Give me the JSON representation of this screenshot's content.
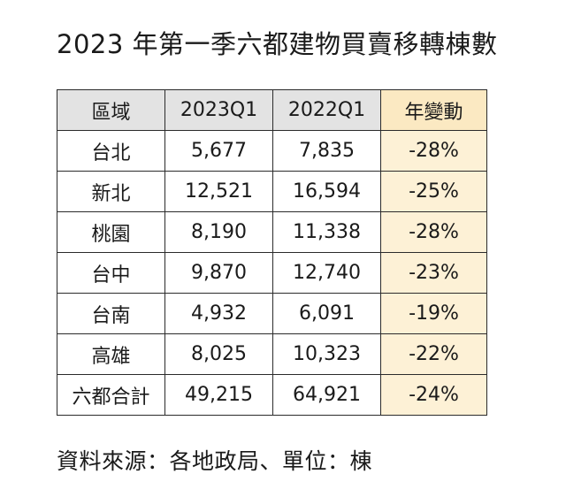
{
  "title": "2023 年第一季六都建物買賣移轉棟數",
  "table": {
    "headers": [
      "區域",
      "2023Q1",
      "2022Q1",
      "年變動"
    ],
    "rows": [
      [
        "台北",
        "5,677",
        "7,835",
        "-28%"
      ],
      [
        "新北",
        "12,521",
        "16,594",
        "-25%"
      ],
      [
        "桃園",
        "8,190",
        "11,338",
        "-28%"
      ],
      [
        "台中",
        "9,870",
        "12,740",
        "-23%"
      ],
      [
        "台南",
        "4,932",
        "6,091",
        "-19%"
      ],
      [
        "高雄",
        "8,025",
        "10,323",
        "-22%"
      ],
      [
        "六都合計",
        "49,215",
        "64,921",
        "-24%"
      ]
    ]
  },
  "source": "資料來源：各地政局、單位：棟",
  "colors": {
    "header_bg": "#e3e3e3",
    "change_header_bg": "#fbe9c2",
    "change_cell_bg": "#fdf1d6",
    "border": "#2b2b2b"
  }
}
